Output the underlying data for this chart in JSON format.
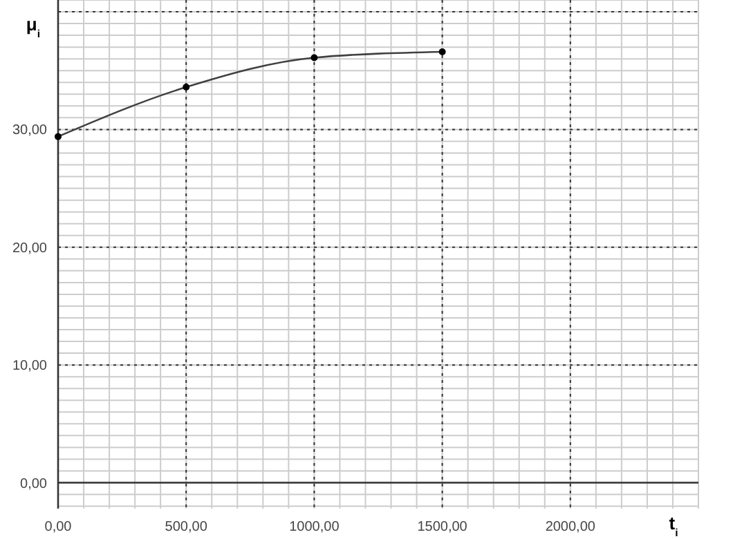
{
  "chart_data": {
    "type": "line",
    "xlabel": "t$_{i}$",
    "ylabel": "μ$_{i}$",
    "x": [
      0,
      500,
      1000,
      1500
    ],
    "series": [
      {
        "color": "#404040",
        "values": [
          29.4,
          33.6,
          36.1,
          36.6
        ]
      }
    ],
    "xlim": [
      0,
      2500
    ],
    "ylim": [
      -2.2,
      41
    ],
    "xticks": [
      {
        "value": 0,
        "label": "0,00"
      },
      {
        "value": 500,
        "label": "500,00"
      },
      {
        "value": 1000,
        "label": "1000,00"
      },
      {
        "value": 1500,
        "label": "1500,00"
      },
      {
        "value": 2000,
        "label": "2000,00"
      }
    ],
    "yticks": [
      {
        "value": 0,
        "label": "0,00"
      },
      {
        "value": 10,
        "label": "10,00"
      },
      {
        "value": 20,
        "label": "20,00"
      },
      {
        "value": 30,
        "label": "30,00"
      },
      {
        "value": 40,
        "label": null
      }
    ],
    "grid": true,
    "marker": "circle",
    "line_style": "solid"
  }
}
